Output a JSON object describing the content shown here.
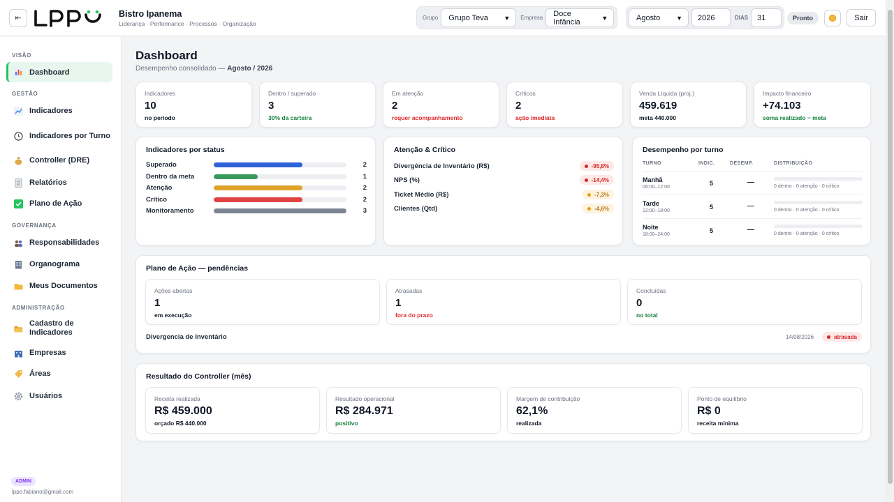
{
  "header": {
    "collapse_icon": "⇤",
    "brand_name": "Bistro Ipanema",
    "brand_sub": "Liderança · Performance · Processos · Organização",
    "grupo_label": "Grupo",
    "grupo_value": "Grupo Teva",
    "empresa_label": "Empresa",
    "empresa_value": "Doce Infância",
    "month_value": "Agosto",
    "year_value": "2026",
    "dias_label": "DIAS",
    "dias_value": "31",
    "status": "Pronto",
    "logout_label": "Sair"
  },
  "sidebar": {
    "sections": {
      "visao": "VISÃO",
      "gestao": "GESTÃO",
      "governanca": "GOVERNANÇA",
      "administracao": "ADMINISTRAÇÃO"
    },
    "items": [
      {
        "label": "Dashboard",
        "icon": "bar-chart-icon"
      },
      {
        "label": "Indicadores",
        "icon": "line-chart-icon"
      },
      {
        "label": "Indicadores por Turno",
        "icon": "clock-icon"
      },
      {
        "label": "Controller (DRE)",
        "icon": "money-bag-icon"
      },
      {
        "label": "Relatórios",
        "icon": "report-icon"
      },
      {
        "label": "Plano de Ação",
        "icon": "check-icon"
      },
      {
        "label": "Responsabilidades",
        "icon": "people-icon"
      },
      {
        "label": "Organograma",
        "icon": "building-icon"
      },
      {
        "label": "Meus Documentos",
        "icon": "folder-icon"
      },
      {
        "label": "Cadastro de Indicadores",
        "icon": "folder-open-icon"
      },
      {
        "label": "Empresas",
        "icon": "company-icon"
      },
      {
        "label": "Áreas",
        "icon": "tag-icon"
      },
      {
        "label": "Usuários",
        "icon": "gear-icon"
      }
    ],
    "role": "ADMIN",
    "email": "lppo.fabiano@gmail.com"
  },
  "page": {
    "title": "Dashboard",
    "subtitle_prefix": "Desempenho consolidado —",
    "subtitle_period": "Agosto / 2026"
  },
  "kpis": [
    {
      "label": "Indicadores",
      "value": "10",
      "sub": "no período"
    },
    {
      "label": "Dentro / superado",
      "value": "3",
      "sub": "30% da carteira"
    },
    {
      "label": "Em atenção",
      "value": "2",
      "sub": "requer acompanhamento"
    },
    {
      "label": "Críticos",
      "value": "2",
      "sub": "ação imediata"
    },
    {
      "label": "Venda Líquida (proj.)",
      "value": "459.619",
      "sub": "meta 440.000"
    },
    {
      "label": "Impacto financeiro",
      "value": "+74.103",
      "sub": "soma realizado − meta"
    }
  ],
  "status_card": {
    "title": "Indicadores por status",
    "rows": [
      {
        "name": "Superado",
        "count": "2",
        "fill": 0.67,
        "color": "#2d62d8"
      },
      {
        "name": "Dentro da meta",
        "count": "1",
        "fill": 0.33,
        "color": "#3a9a5c"
      },
      {
        "name": "Atenção",
        "count": "2",
        "fill": 0.67,
        "color": "#e0a32a"
      },
      {
        "name": "Crítico",
        "count": "2",
        "fill": 0.67,
        "color": "#e04343"
      },
      {
        "name": "Monitoramento",
        "count": "3",
        "fill": 1.0,
        "color": "#7b8491"
      }
    ]
  },
  "attention_card": {
    "title": "Atenção & Crítico",
    "rows": [
      {
        "name": "Divergência de Inventário (R$)",
        "value": "-95,8%",
        "level": "red"
      },
      {
        "name": "NPS (%)",
        "value": "-14,4%",
        "level": "red"
      },
      {
        "name": "Ticket Médio (R$)",
        "value": "-7,3%",
        "level": "yellow"
      },
      {
        "name": "Clientes (Qtd)",
        "value": "-4,6%",
        "level": "yellow"
      }
    ]
  },
  "turno_card": {
    "title": "Desempenho por turno",
    "headers": {
      "turno": "TURNO",
      "indic": "INDIC.",
      "desemp": "DESEMP.",
      "dist": "DISTRIBUIÇÃO"
    },
    "rows": [
      {
        "name": "Manhã",
        "hours": "06:00–12:00",
        "indic": "5",
        "desemp": "—",
        "dist": "0 dentro · 0 atenção · 0 crítico"
      },
      {
        "name": "Tarde",
        "hours": "12:00–18:00",
        "indic": "5",
        "desemp": "—",
        "dist": "0 dentro · 0 atenção · 0 crítico"
      },
      {
        "name": "Noite",
        "hours": "18:00–24:00",
        "indic": "5",
        "desemp": "—",
        "dist": "0 dentro · 0 atenção · 0 crítico"
      }
    ]
  },
  "plano": {
    "title": "Plano de Ação — pendências",
    "cards": [
      {
        "label": "Ações abertas",
        "value": "1",
        "sub": "em execução"
      },
      {
        "label": "Atrasadas",
        "value": "1",
        "sub": "fora do prazo"
      },
      {
        "label": "Concluídas",
        "value": "0",
        "sub": "no total"
      }
    ],
    "item": {
      "name": "Divergencia de Inventário",
      "date": "14/08/2026",
      "status": "atrasada"
    }
  },
  "controller": {
    "title": "Resultado do Controller (mês)",
    "cards": [
      {
        "label": "Receita realizada",
        "value": "R$ 459.000",
        "sub": "orçado R$ 440.000"
      },
      {
        "label": "Resultado operacional",
        "value": "R$ 284.971",
        "sub": "positivo"
      },
      {
        "label": "Margem de contribuição",
        "value": "62,1%",
        "sub": "realizada"
      },
      {
        "label": "Ponto de equilíbrio",
        "value": "R$ 0",
        "sub": "receita mínima"
      }
    ]
  }
}
